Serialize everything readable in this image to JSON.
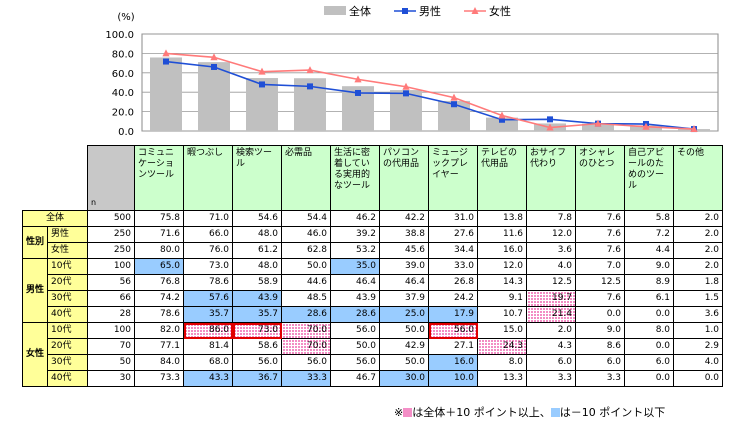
{
  "chart_data": {
    "type": "bar",
    "y_unit_label": "(%)",
    "ylim": [
      0,
      100
    ],
    "y_ticks": [
      "0.0",
      "20.0",
      "40.0",
      "60.0",
      "80.0",
      "100.0"
    ],
    "categories": [
      "コミュニケーションツール",
      "暇つぶし",
      "検索ツール",
      "必需品",
      "生活に密着している実用的なツール",
      "パソコンの代用品",
      "ミュージックプレイヤー",
      "テレビの代用品",
      "おサイフ代わり",
      "オシャレのひとつ",
      "自己アピールのためのツール",
      "その他"
    ],
    "series": [
      {
        "name": "全体",
        "type": "bar",
        "color": "#c0c0c0",
        "values": [
          75.8,
          71.0,
          54.6,
          54.4,
          46.2,
          42.2,
          31.0,
          13.8,
          7.8,
          7.6,
          5.8,
          2.0
        ]
      },
      {
        "name": "男性",
        "type": "line",
        "color": "#1f4fd6",
        "values": [
          71.6,
          66.0,
          48.0,
          46.0,
          39.2,
          38.8,
          27.6,
          11.6,
          12.0,
          7.6,
          7.2,
          2.0
        ]
      },
      {
        "name": "女性",
        "type": "line",
        "color": "#ff7a7a",
        "values": [
          80.0,
          76.0,
          61.2,
          62.8,
          53.2,
          45.6,
          34.4,
          16.0,
          3.6,
          7.6,
          4.4,
          2.0
        ]
      }
    ],
    "grid": true,
    "legend_position": "top"
  },
  "table": {
    "n_label": "n",
    "headers": [
      "コミュニケーションツール",
      "暇つぶし",
      "検索ツール",
      "必需品",
      "生活に密着している実用的なツール",
      "パソコンの代用品",
      "ミュージックプレイヤー",
      "テレビの代用品",
      "おサイフ代わり",
      "オシャレのひとつ",
      "自己アピールのためのツール",
      "その他"
    ],
    "groups": {
      "gender": "性別",
      "male": "男性",
      "female": "女性"
    },
    "rows": [
      {
        "label": "全体",
        "n": "500",
        "values": [
          "75.8",
          "71.0",
          "54.6",
          "54.4",
          "46.2",
          "42.2",
          "31.0",
          "13.8",
          "7.8",
          "7.6",
          "5.8",
          "2.0"
        ],
        "marks": [
          "",
          "",
          "",
          "",
          "",
          "",
          "",
          "",
          "",
          "",
          "",
          ""
        ]
      },
      {
        "label": "男性",
        "n": "250",
        "values": [
          "71.6",
          "66.0",
          "48.0",
          "46.0",
          "39.2",
          "38.8",
          "27.6",
          "11.6",
          "12.0",
          "7.6",
          "7.2",
          "2.0"
        ],
        "marks": [
          "",
          "",
          "",
          "",
          "",
          "",
          "",
          "",
          "",
          "",
          "",
          ""
        ]
      },
      {
        "label": "女性",
        "n": "250",
        "values": [
          "80.0",
          "76.0",
          "61.2",
          "62.8",
          "53.2",
          "45.6",
          "34.4",
          "16.0",
          "3.6",
          "7.6",
          "4.4",
          "2.0"
        ],
        "marks": [
          "",
          "",
          "",
          "",
          "",
          "",
          "",
          "",
          "",
          "",
          "",
          ""
        ]
      },
      {
        "label": "10代",
        "n": "100",
        "values": [
          "65.0",
          "73.0",
          "48.0",
          "50.0",
          "35.0",
          "39.0",
          "33.0",
          "12.0",
          "4.0",
          "7.0",
          "9.0",
          "2.0"
        ],
        "marks": [
          "minus",
          "",
          "",
          "",
          "minus",
          "",
          "",
          "",
          "",
          "",
          "",
          ""
        ]
      },
      {
        "label": "20代",
        "n": "56",
        "values": [
          "76.8",
          "78.6",
          "58.9",
          "44.6",
          "46.4",
          "46.4",
          "26.8",
          "14.3",
          "12.5",
          "12.5",
          "8.9",
          "1.8"
        ],
        "marks": [
          "",
          "",
          "",
          "",
          "",
          "",
          "",
          "",
          "",
          "",
          "",
          ""
        ]
      },
      {
        "label": "30代",
        "n": "66",
        "values": [
          "74.2",
          "57.6",
          "43.9",
          "48.5",
          "43.9",
          "37.9",
          "24.2",
          "9.1",
          "19.7",
          "7.6",
          "6.1",
          "1.5"
        ],
        "marks": [
          "",
          "minus",
          "minus",
          "",
          "",
          "",
          "",
          "",
          "plus",
          "",
          "",
          ""
        ]
      },
      {
        "label": "40代",
        "n": "28",
        "values": [
          "78.6",
          "35.7",
          "35.7",
          "28.6",
          "28.6",
          "25.0",
          "17.9",
          "10.7",
          "21.4",
          "0.0",
          "0.0",
          "3.6"
        ],
        "marks": [
          "",
          "minus",
          "minus",
          "minus",
          "minus",
          "minus",
          "minus",
          "",
          "plus",
          "",
          "",
          ""
        ]
      },
      {
        "label": "10代",
        "n": "100",
        "values": [
          "82.0",
          "86.0",
          "73.0",
          "70.0",
          "56.0",
          "50.0",
          "56.0",
          "15.0",
          "2.0",
          "9.0",
          "8.0",
          "1.0"
        ],
        "marks": [
          "",
          "plus-box",
          "plus-box",
          "plus",
          "",
          "",
          "plus-box",
          "",
          "",
          "",
          "",
          ""
        ]
      },
      {
        "label": "20代",
        "n": "70",
        "values": [
          "77.1",
          "81.4",
          "58.6",
          "70.0",
          "50.0",
          "42.9",
          "27.1",
          "24.3",
          "4.3",
          "8.6",
          "0.0",
          "2.9"
        ],
        "marks": [
          "",
          "",
          "",
          "plus",
          "",
          "",
          "",
          "plus",
          "",
          "",
          "",
          ""
        ]
      },
      {
        "label": "30代",
        "n": "50",
        "values": [
          "84.0",
          "68.0",
          "56.0",
          "56.0",
          "56.0",
          "50.0",
          "16.0",
          "8.0",
          "6.0",
          "6.0",
          "6.0",
          "4.0"
        ],
        "marks": [
          "",
          "",
          "",
          "",
          "",
          "",
          "minus",
          "",
          "",
          "",
          "",
          ""
        ]
      },
      {
        "label": "40代",
        "n": "30",
        "values": [
          "73.3",
          "43.3",
          "36.7",
          "33.3",
          "46.7",
          "30.0",
          "10.0",
          "13.3",
          "3.3",
          "3.3",
          "0.0",
          "0.0"
        ],
        "marks": [
          "",
          "minus",
          "minus",
          "minus",
          "",
          "minus",
          "minus",
          "",
          "",
          "",
          "",
          ""
        ]
      }
    ]
  },
  "note": {
    "prefix": "※",
    "plus_text": "は全体＋10 ポイント以上、",
    "minus_text": "は－10 ポイント以下"
  },
  "colors": {
    "plus": "#f48fc7",
    "minus": "#99ccff",
    "label_bg": "#ffff99",
    "header_bg": "#ccffcc",
    "box": "#e00000"
  }
}
